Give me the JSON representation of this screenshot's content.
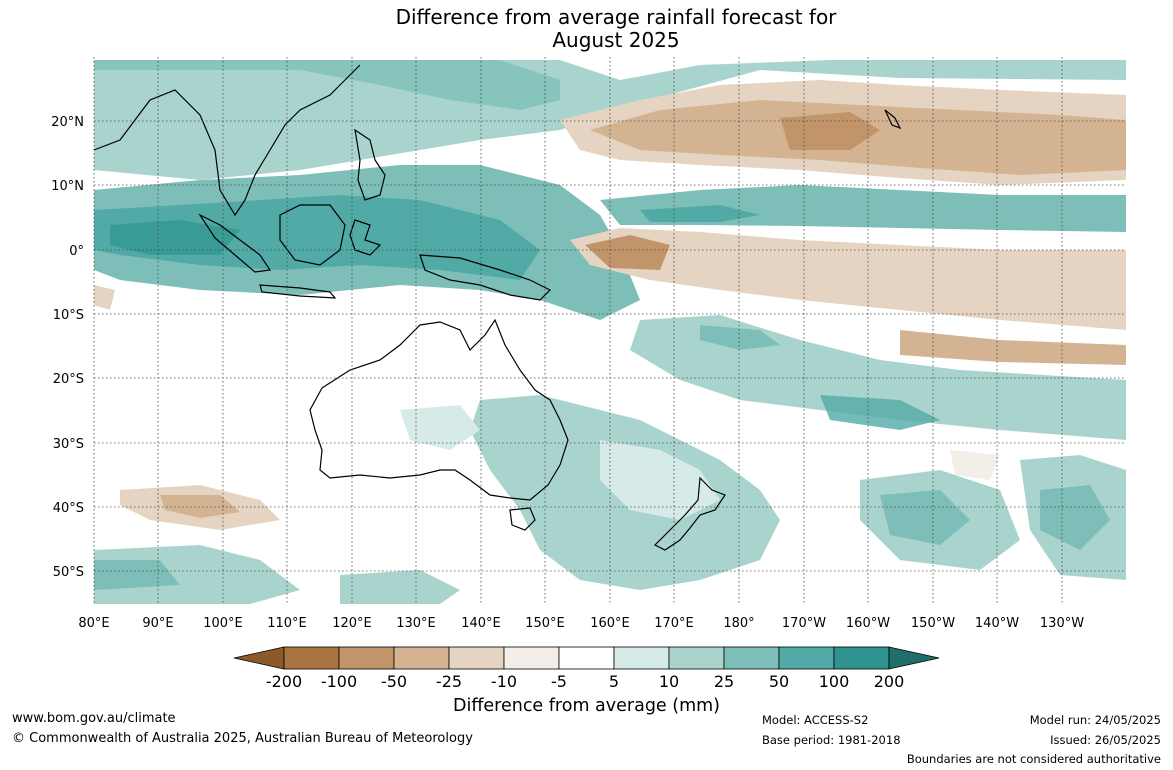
{
  "title_line1": "Difference from average rainfall forecast for",
  "title_line2": "August 2025",
  "map": {
    "lon_labels": [
      "80°E",
      "90°E",
      "100°E",
      "110°E",
      "120°E",
      "130°E",
      "140°E",
      "150°E",
      "160°E",
      "170°E",
      "180°",
      "170°W",
      "160°W",
      "150°W",
      "140°W",
      "130°W"
    ],
    "lat_labels": [
      "20°N",
      "10°N",
      "0°",
      "10°S",
      "20°S",
      "30°S",
      "40°S",
      "50°S"
    ],
    "lon_range": [
      "80°E",
      "120°W"
    ],
    "lat_range": [
      "30°N",
      "55°S"
    ],
    "grid": "dotted"
  },
  "legend": {
    "title": "Difference from average (mm)",
    "ticks": [
      "-200",
      "-100",
      "-50",
      "-25",
      "-10",
      "-5",
      "5",
      "10",
      "25",
      "50",
      "100",
      "200"
    ],
    "colors": [
      "#8a5a2b",
      "#a87440",
      "#c19569",
      "#d3b391",
      "#e6d4c2",
      "#f3efe8",
      "#ffffff",
      "#d6ebe8",
      "#a9d4ce",
      "#7dbfb8",
      "#52aaa6",
      "#2f948f",
      "#1f6e6a"
    ]
  },
  "footer": {
    "url": "www.bom.gov.au/climate",
    "copyright": "© Commonwealth of Australia 2025, Australian Bureau of Meteorology",
    "model": "Model: ACCESS-S2",
    "base_period": "Base period: 1981-2018",
    "model_run": "Model run: 24/05/2025",
    "issued": "Issued: 26/05/2025",
    "disclaimer": "Boundaries are not considered authoritative"
  }
}
